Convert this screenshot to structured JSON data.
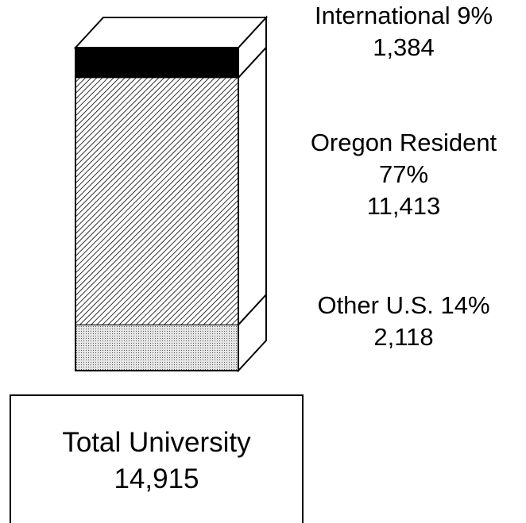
{
  "chart_data": {
    "type": "stacked-bar",
    "series": [
      {
        "name": "Other U.S. 14%",
        "color": "dots",
        "values": [
          2118
        ],
        "value_labels": [
          "2,118"
        ]
      },
      {
        "name": "Oregon Resident 77%",
        "color": "hatch",
        "values": [
          11413
        ],
        "value_labels": [
          "11,413"
        ]
      },
      {
        "name": "International 9%",
        "color": "#000000",
        "values": [
          1384
        ],
        "value_labels": [
          "1,384"
        ]
      }
    ],
    "total": {
      "label": "Total University",
      "value": 14915,
      "value_label": "14,915"
    }
  }
}
